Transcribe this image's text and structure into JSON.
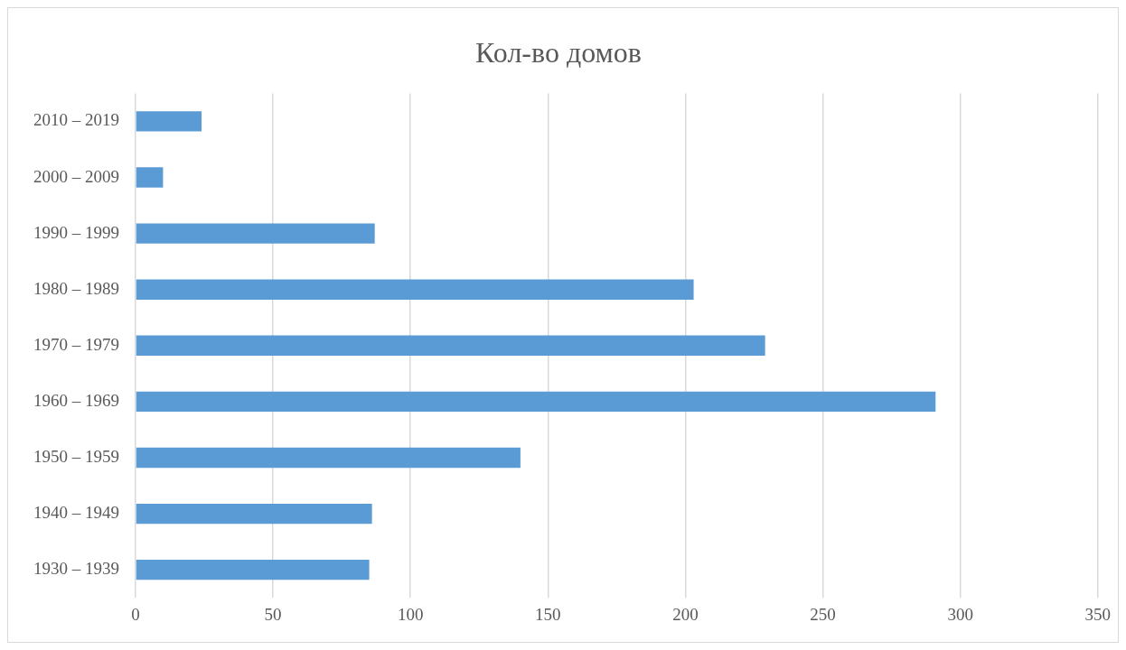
{
  "chart_data": {
    "type": "bar",
    "orientation": "horizontal",
    "title": "Кол-во домов",
    "categories": [
      "2010 – 2019",
      "2000 – 2009",
      "1990 – 1999",
      "1980 – 1989",
      "1970 – 1979",
      "1960 – 1969",
      "1950 – 1959",
      "1940 – 1949",
      "1930 – 1939"
    ],
    "values": [
      24,
      10,
      87,
      203,
      229,
      291,
      140,
      86,
      85
    ],
    "color": "#5b9bd5",
    "xlim": [
      0,
      350
    ],
    "xticks": [
      0,
      50,
      100,
      150,
      200,
      250,
      300,
      350
    ],
    "grid": "x",
    "legend": false
  }
}
